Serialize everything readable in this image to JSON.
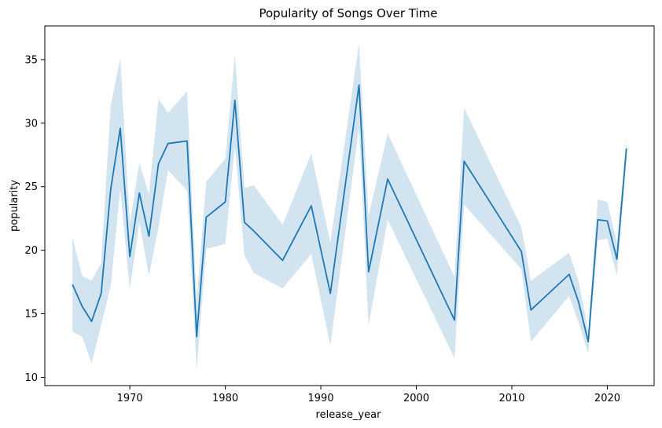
{
  "chart_data": {
    "type": "line",
    "title": "Popularity of Songs Over Time",
    "xlabel": "release_year",
    "ylabel": "popularity",
    "xlim": [
      1961.1,
      2024.9
    ],
    "ylim": [
      9.35,
      37.65
    ],
    "xticks": [
      1970,
      1980,
      1990,
      2000,
      2010,
      2020
    ],
    "yticks": [
      10,
      15,
      20,
      25,
      30,
      35
    ],
    "grid": false,
    "line_color": "#1f77b4",
    "band_color": "#1f77b4",
    "series": [
      {
        "name": "popularity",
        "x": [
          1964,
          1965,
          1966,
          1967,
          1968,
          1969,
          1970,
          1971,
          1972,
          1973,
          1974,
          1976,
          1977,
          1978,
          1980,
          1981,
          1982,
          1983,
          1986,
          1989,
          1991,
          1994,
          1995,
          1997,
          2004,
          2005,
          2011,
          2012,
          2016,
          2017,
          2018,
          2019,
          2020,
          2021,
          2022
        ],
        "y": [
          17.3,
          15.6,
          14.4,
          16.6,
          24.8,
          29.6,
          19.5,
          24.5,
          21.1,
          26.8,
          28.4,
          28.6,
          13.2,
          22.6,
          23.8,
          31.8,
          22.2,
          21.5,
          19.2,
          23.5,
          16.6,
          33.0,
          18.3,
          25.6,
          14.5,
          27.0,
          19.9,
          15.3,
          18.1,
          15.9,
          12.8,
          22.4,
          22.3,
          19.3,
          28.0
        ],
        "ci_lower": [
          13.6,
          13.2,
          11.1,
          14.1,
          17.2,
          24.8,
          16.9,
          22.2,
          18.0,
          21.8,
          26.3,
          24.7,
          10.6,
          20.1,
          20.5,
          28.2,
          19.6,
          18.2,
          17.0,
          19.7,
          12.5,
          29.7,
          14.1,
          22.4,
          11.5,
          23.6,
          18.5,
          12.8,
          16.4,
          14.3,
          11.9,
          20.8,
          20.9,
          18.0,
          27.1
        ],
        "ci_upper": [
          21.0,
          18.0,
          17.6,
          19.0,
          31.4,
          35.1,
          22.1,
          26.9,
          24.4,
          31.9,
          30.8,
          32.5,
          16.0,
          25.4,
          27.2,
          35.4,
          24.9,
          25.1,
          22.0,
          27.6,
          20.6,
          36.3,
          22.7,
          29.2,
          17.9,
          31.2,
          21.8,
          17.6,
          19.8,
          17.5,
          13.7,
          24.0,
          23.8,
          20.6,
          28.8
        ]
      }
    ]
  }
}
